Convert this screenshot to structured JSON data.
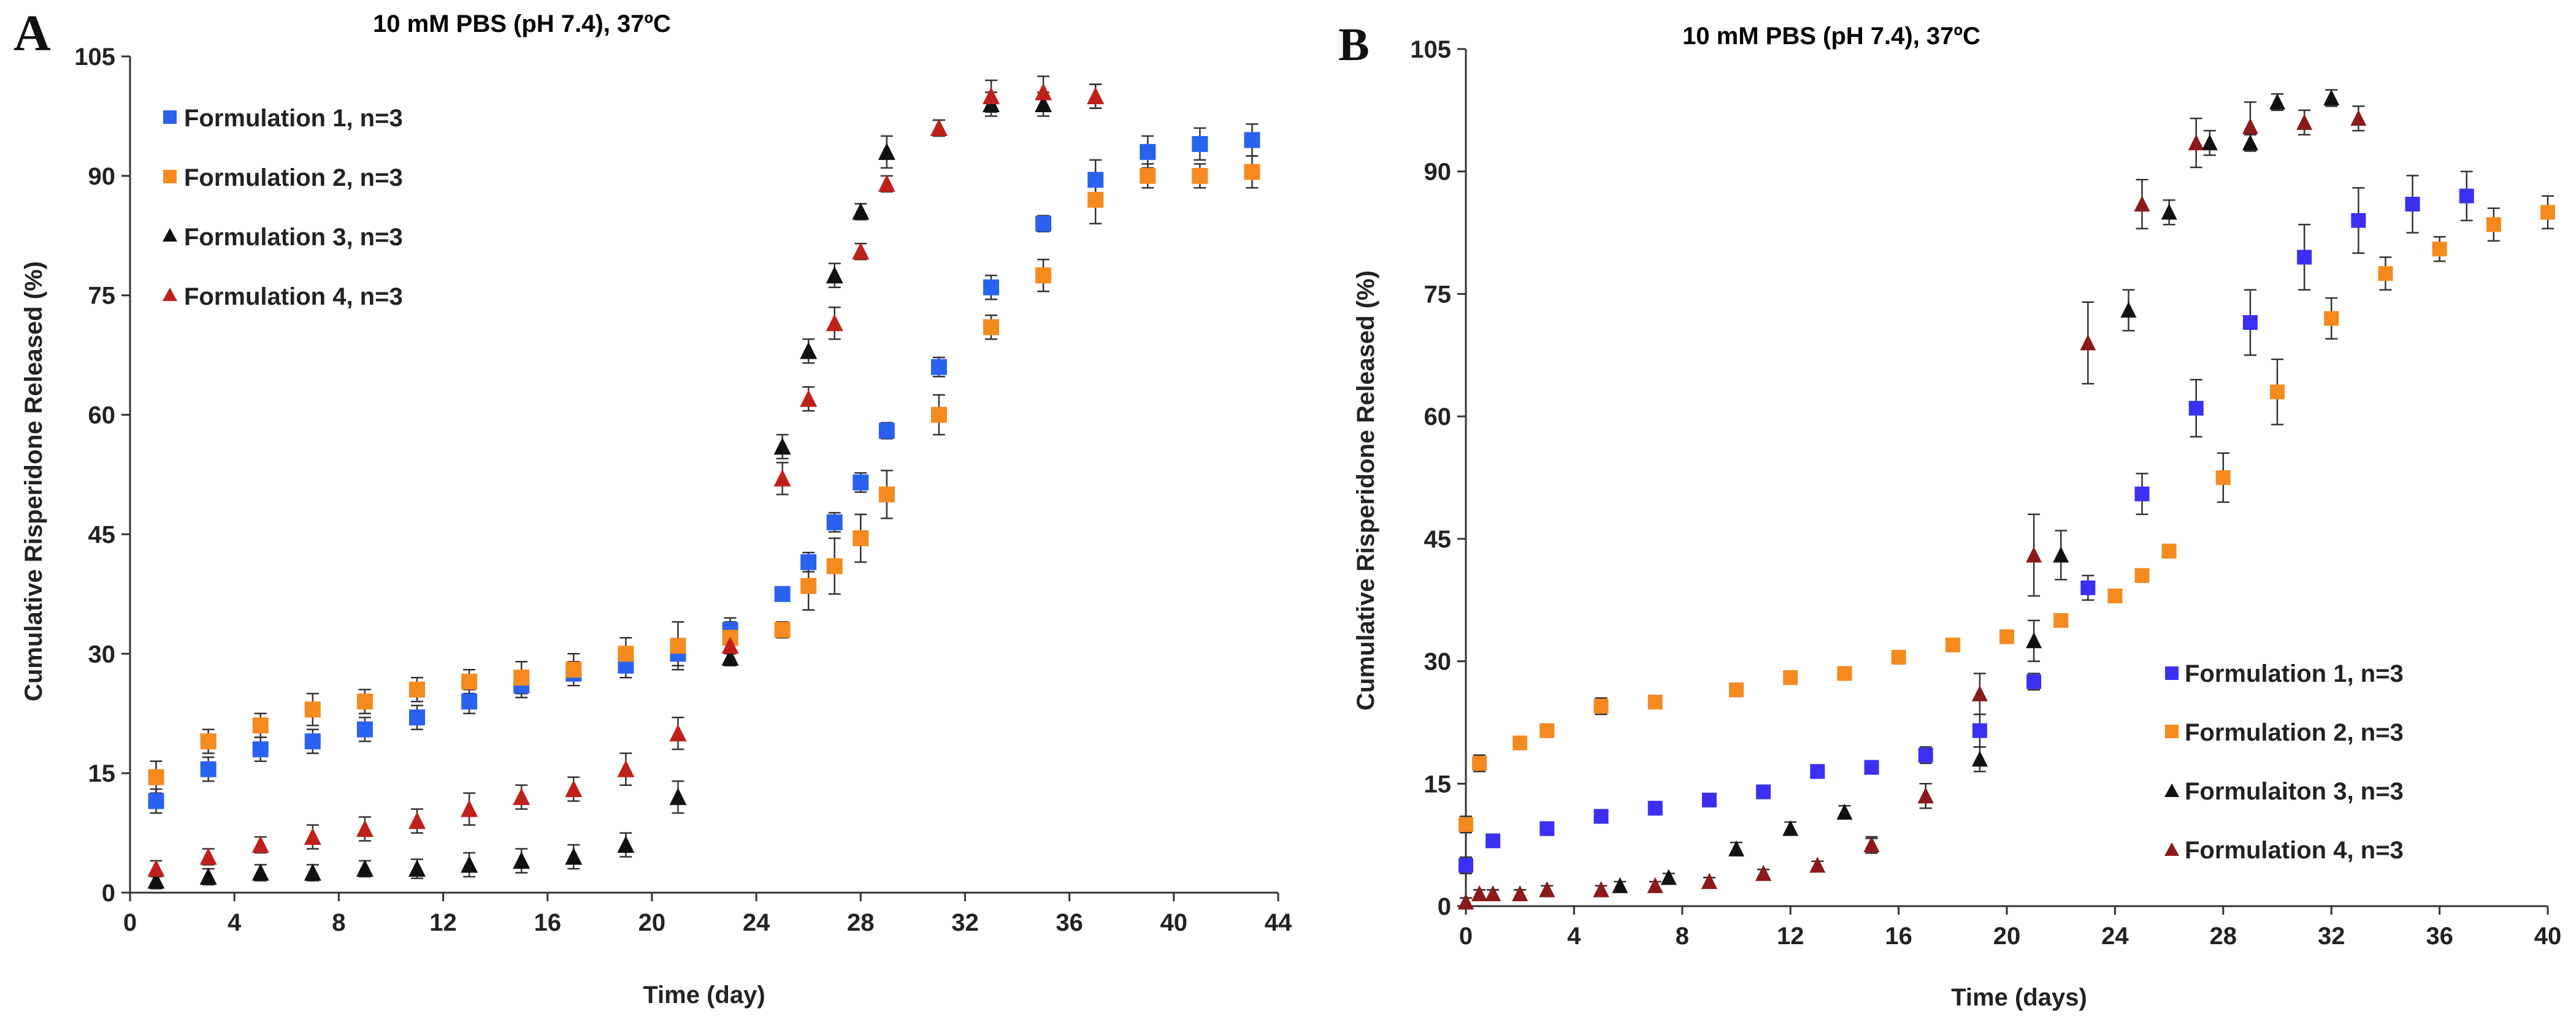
{
  "chart_data": [
    {
      "panel_label": "A",
      "type": "scatter",
      "title": "10 mM PBS (pH 7.4), 37ºC",
      "xlabel": "Time (day)",
      "ylabel": "Cumulative Risperidone Released (%)",
      "xlim": [
        0,
        44
      ],
      "ylim": [
        0,
        105
      ],
      "xticks": [
        "0",
        "4",
        "8",
        "12",
        "16",
        "20",
        "24",
        "28",
        "32",
        "36",
        "40",
        "44"
      ],
      "yticks": [
        "0",
        "15",
        "30",
        "45",
        "60",
        "75",
        "90",
        "105"
      ],
      "grid": false,
      "legend_position": "top-left",
      "error_bars": true,
      "series": [
        {
          "name": "Formulation 1, n=3",
          "color": "#2a62f0",
          "marker": "square",
          "x": [
            1,
            3,
            5,
            7,
            9,
            11,
            13,
            15,
            17,
            19,
            21,
            23,
            25,
            26,
            27,
            28,
            29,
            31,
            33,
            35,
            37,
            39,
            41,
            43
          ],
          "y": [
            11.5,
            15.5,
            18,
            19,
            20.5,
            22,
            24,
            26,
            27.5,
            28.5,
            30,
            33,
            37.5,
            41.5,
            46.5,
            51.5,
            58,
            66,
            76,
            84,
            89.5,
            93,
            94,
            94.5
          ],
          "err": [
            1.5,
            1.5,
            1.5,
            1.5,
            1.5,
            1.5,
            1.5,
            1.5,
            1.5,
            1.5,
            1.5,
            1.5,
            0.8,
            1.2,
            1.2,
            1.2,
            1.0,
            1.2,
            1.5,
            1.0,
            2.5,
            2.0,
            2.0,
            2.0
          ]
        },
        {
          "name": "Formulation 2, n=3",
          "color": "#f58a1f",
          "marker": "square",
          "x": [
            1,
            3,
            5,
            7,
            9,
            11,
            13,
            15,
            17,
            19,
            21,
            23,
            25,
            26,
            27,
            28,
            29,
            31,
            33,
            35,
            37,
            39,
            41,
            43
          ],
          "y": [
            14.5,
            19,
            21,
            23,
            24,
            25.5,
            26.5,
            27,
            28,
            30,
            31,
            32,
            33,
            38.5,
            41,
            44.5,
            50,
            60,
            71,
            77.5,
            87,
            90,
            90,
            90.5
          ],
          "err": [
            2.0,
            1.5,
            1.5,
            2.0,
            1.5,
            1.5,
            1.5,
            2.0,
            2.0,
            2.0,
            3.0,
            2.0,
            1.0,
            3.0,
            3.5,
            3.0,
            3.0,
            2.5,
            1.5,
            2.0,
            3.0,
            1.5,
            1.5,
            2.0
          ]
        },
        {
          "name": "Formulation 3, n=3",
          "color": "#111111",
          "marker": "triangle",
          "x": [
            1,
            3,
            5,
            7,
            9,
            11,
            13,
            15,
            17,
            19,
            21,
            23,
            25,
            26,
            27,
            28,
            29,
            31,
            33,
            35,
            37
          ],
          "y": [
            1.5,
            2,
            2.5,
            2.5,
            3,
            3,
            3.5,
            4,
            4.5,
            6,
            12,
            29.5,
            56,
            68,
            77.5,
            85.5,
            93,
            96,
            99,
            99,
            100
          ],
          "err": [
            1.0,
            1.0,
            1.0,
            1.0,
            1.0,
            1.2,
            1.5,
            1.5,
            1.5,
            1.5,
            2.0,
            1.0,
            1.5,
            1.5,
            1.5,
            1.0,
            2.0,
            1.0,
            1.5,
            1.5,
            1.5
          ]
        },
        {
          "name": "Formulation 4, n=3",
          "color": "#c0201c",
          "marker": "triangle",
          "x": [
            1,
            3,
            5,
            7,
            9,
            11,
            13,
            15,
            17,
            19,
            21,
            23,
            25,
            26,
            27,
            28,
            29,
            31,
            33,
            35,
            37
          ],
          "y": [
            3,
            4.5,
            6,
            7,
            8,
            9,
            10.5,
            12,
            13,
            15.5,
            20,
            31,
            52,
            62,
            71.5,
            80.5,
            89,
            96,
            100,
            100.5,
            100
          ],
          "err": [
            1.0,
            1.0,
            1.0,
            1.5,
            1.5,
            1.5,
            2.0,
            1.5,
            1.5,
            2.0,
            2.0,
            1.0,
            2.0,
            1.5,
            2.0,
            1.0,
            1.0,
            1.0,
            2.0,
            2.0,
            1.5
          ]
        }
      ]
    },
    {
      "panel_label": "B",
      "type": "scatter",
      "title": "10 mM PBS (pH 7.4), 37ºC",
      "xlabel": "Time (days)",
      "ylabel": "Cumulative Risperidone Released (%)",
      "xlim": [
        0,
        40
      ],
      "ylim": [
        0,
        105
      ],
      "xticks": [
        "0",
        "4",
        "8",
        "12",
        "16",
        "20",
        "24",
        "28",
        "32",
        "36",
        "40"
      ],
      "yticks": [
        "0",
        "15",
        "30",
        "45",
        "60",
        "75",
        "90",
        "105"
      ],
      "grid": false,
      "legend_position": "bottom-right",
      "error_bars": true,
      "series": [
        {
          "name": "Formulation 1, n=3",
          "color": "#3b2ff2",
          "marker": "square",
          "x": [
            0,
            1,
            3,
            5,
            7,
            9,
            11,
            13,
            15,
            17,
            19,
            21,
            23,
            25,
            27,
            29,
            31,
            33,
            35,
            37
          ],
          "y": [
            5,
            8,
            9.5,
            11,
            12,
            13,
            14,
            16.5,
            17,
            18.5,
            21.5,
            27.5,
            39,
            50.5,
            61,
            71.5,
            79.5,
            84,
            86,
            87
          ],
          "err": [
            1.0,
            0.8,
            0.8,
            0.8,
            0.8,
            0.8,
            0.8,
            0.8,
            0.8,
            1.0,
            2.0,
            1.0,
            1.5,
            2.5,
            3.5,
            4.0,
            4.0,
            4.0,
            3.5,
            3.0
          ]
        },
        {
          "name": "Formulation 2, n=3",
          "color": "#f58a1f",
          "marker": "square",
          "x": [
            0,
            0.5,
            2,
            3,
            5,
            7,
            10,
            12,
            14,
            16,
            18,
            20,
            22,
            24,
            25,
            26,
            28,
            30,
            32,
            34,
            36,
            38,
            40
          ],
          "y": [
            10,
            17.5,
            20,
            21.5,
            24.5,
            25,
            26.5,
            28,
            28.5,
            30.5,
            32,
            33,
            35,
            38,
            40.5,
            43.5,
            52.5,
            63,
            72,
            77.5,
            80.5,
            83.5,
            85
          ],
          "err": [
            1.0,
            1.0,
            0.8,
            0.8,
            1.0,
            0.8,
            0.8,
            0.8,
            0.8,
            0.8,
            0.8,
            0.8,
            0.8,
            0.8,
            0.8,
            0.8,
            3.0,
            4.0,
            2.5,
            2.0,
            1.5,
            2.0,
            2.0
          ]
        },
        {
          "name": "Formulaiton 3, n=3",
          "color": "#111111",
          "marker": "triangle",
          "x": [
            0,
            0.5,
            1,
            2,
            3,
            5,
            5.7,
            7.5,
            9,
            10,
            11,
            12,
            14,
            15,
            17,
            19,
            21,
            22,
            24.5,
            26,
            27.5,
            29,
            30,
            32
          ],
          "y": [
            0.5,
            1.5,
            1.5,
            1.5,
            2,
            2,
            2.5,
            3.5,
            3,
            7,
            4,
            9.5,
            11.5,
            7.5,
            13.5,
            18,
            32.5,
            43,
            73,
            85,
            93.5,
            93.5,
            98.5,
            99
          ],
          "err": [
            0.5,
            0.5,
            0.5,
            0.5,
            0.5,
            0.5,
            0.5,
            0.5,
            0.5,
            0.8,
            0.5,
            0.8,
            0.8,
            1.0,
            1.5,
            1.5,
            2.5,
            3.0,
            2.5,
            1.5,
            1.5,
            1.0,
            1.0,
            1.0
          ]
        },
        {
          "name": "Formulation 4, n=3",
          "color": "#8b1a1a",
          "marker": "triangle",
          "x": [
            0,
            0.5,
            1,
            2,
            3,
            5,
            7,
            9,
            11,
            13,
            15,
            17,
            19,
            21,
            23,
            25,
            27,
            29,
            31,
            33
          ],
          "y": [
            0.5,
            1.5,
            1.5,
            1.5,
            2,
            2,
            2.5,
            3,
            4,
            5,
            7.5,
            13.5,
            26,
            43,
            69,
            86,
            93.5,
            95.5,
            96,
            96.5
          ],
          "err": [
            0.5,
            0.5,
            0.5,
            0.5,
            0.5,
            0.5,
            0.5,
            0.5,
            0.5,
            0.5,
            0.8,
            1.5,
            2.5,
            5.0,
            5.0,
            3.0,
            3.0,
            3.0,
            1.5,
            1.5
          ]
        }
      ]
    }
  ]
}
